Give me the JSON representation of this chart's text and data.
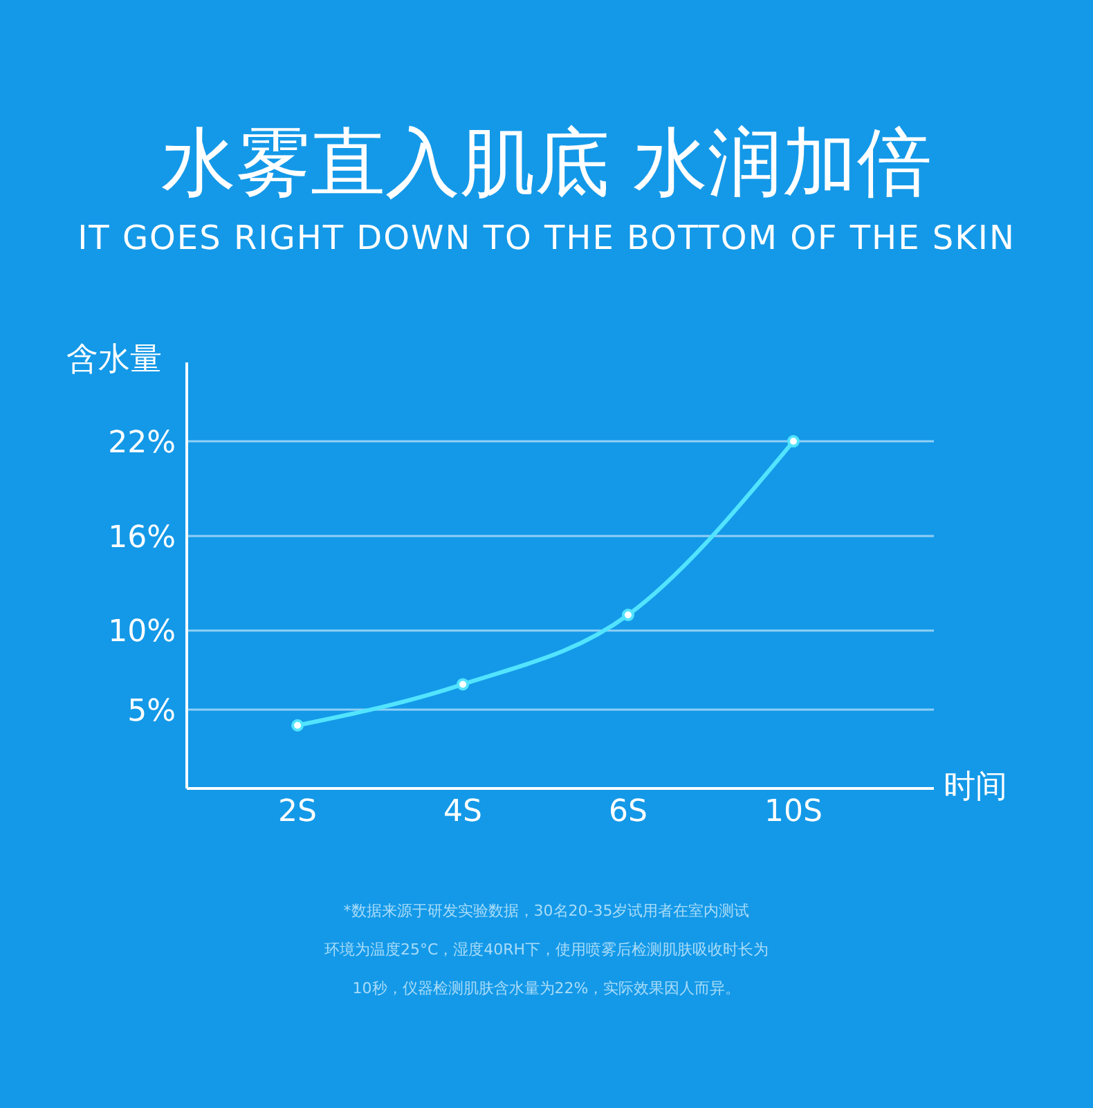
{
  "chart_data": {
    "type": "line",
    "title": "水雾直入肌底 水润加倍",
    "subtitle": "IT GOES RIGHT DOWN TO THE BOTTOM OF THE SKIN",
    "ylabel": "含水量",
    "xlabel": "时间",
    "categories": [
      "2S",
      "4S",
      "6S",
      "10S"
    ],
    "series": [
      {
        "color": "#52e4ff",
        "values": [
          4,
          6.6,
          11,
          22
        ]
      }
    ],
    "ylim": [
      0,
      27
    ],
    "yticks": [
      {
        "value": 5,
        "label": "5%"
      },
      {
        "value": 10,
        "label": "10%"
      },
      {
        "value": 16,
        "label": "16%"
      },
      {
        "value": 22,
        "label": "22%"
      }
    ],
    "grid": "y",
    "marker": "circle",
    "line_style": "solid",
    "legend": false,
    "annotations": [
      "*数据来源于研发实验数据，30名20-35岁试用者在室内测试",
      "环境为温度25°C，湿度40RH下，使用喷雾后检测肌肤吸收时长为",
      "10秒，仪器检测肌肤含水量为22%，实际效果因人而异。"
    ]
  }
}
